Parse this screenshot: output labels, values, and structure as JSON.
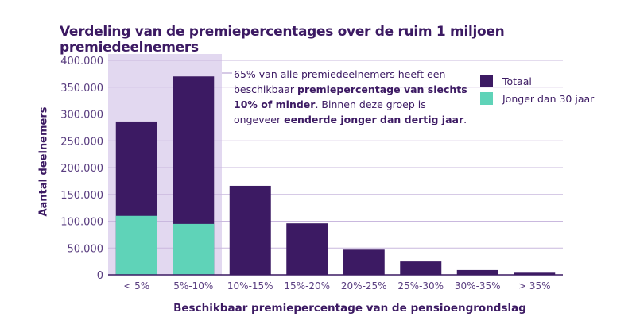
{
  "chart_data": {
    "type": "bar",
    "stacked_overlay": true,
    "title": "Verdeling van de premiepercentages over de ruim 1 miljoen premiedeelnemers",
    "xlabel": "Beschikbaar premiepercentage van de pensioengrondslag",
    "ylabel": "Aantal deelnemers",
    "ylim": [
      0,
      400000
    ],
    "yticks": [
      "0",
      "50.000",
      "100.000",
      "150.000",
      "200.000",
      "250.000",
      "300.000",
      "350.000",
      "400.000"
    ],
    "ytick_values": [
      0,
      50000,
      100000,
      150000,
      200000,
      250000,
      300000,
      350000,
      400000
    ],
    "categories": [
      "< 5%",
      "5%-10%",
      "10%-15%",
      "15%-20%",
      "20%-25%",
      "25%-30%",
      "30%-35%",
      "> 35%"
    ],
    "series": [
      {
        "name": "Totaal",
        "color": "#3c1a63",
        "values": [
          286000,
          370000,
          166000,
          96000,
          47000,
          25000,
          9000,
          4000
        ]
      },
      {
        "name": "Jonger dan 30 jaar",
        "color": "#5fd3b8",
        "values": [
          110000,
          95000,
          null,
          null,
          null,
          null,
          null,
          null
        ]
      }
    ],
    "highlight_categories": [
      "< 5%",
      "5%-10%"
    ],
    "highlight_color": "#e2d8f0",
    "grid": true,
    "legend": "top-right",
    "annotation": {
      "parts": [
        {
          "text": "65% van alle premiedeelnemers heeft een beschikbaar ",
          "bold": false
        },
        {
          "text": "premiepercentage van slechts 10% of minder",
          "bold": true
        },
        {
          "text": ". Binnen deze groep is ongeveer ",
          "bold": false
        },
        {
          "text": "eenderde jonger dan dertig jaar",
          "bold": true
        },
        {
          "text": ".",
          "bold": false
        }
      ]
    }
  }
}
